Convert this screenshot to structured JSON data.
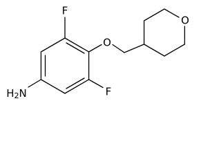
{
  "atoms": [
    {
      "label": "F"
    },
    {
      "label": "O"
    },
    {
      "label": "F"
    },
    {
      "label": "O"
    },
    {
      "label": {
        "h": "H",
        "subscript": "2",
        "n": "N"
      }
    }
  ]
}
